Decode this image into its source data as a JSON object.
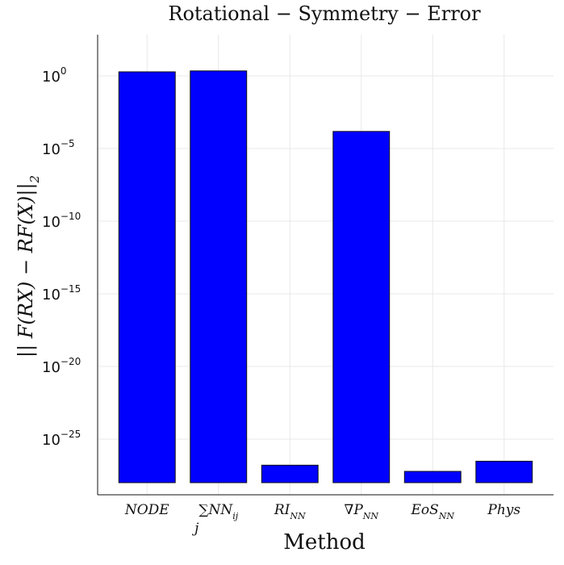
{
  "chart_data": {
    "type": "bar",
    "title": "Rotational − Symmetry − Error",
    "xlabel": "Method",
    "ylabel": "|| F(RX) − RF(X)||",
    "ylabel_subscript": "2",
    "categories": [
      {
        "base": "NODE",
        "sub": "",
        "prefix": ""
      },
      {
        "base": "NN",
        "sub": "ij",
        "prefix": "∑",
        "under": "j"
      },
      {
        "base": "RI",
        "sub": "NN",
        "prefix": ""
      },
      {
        "base": "∇P",
        "sub": "NN",
        "prefix": ""
      },
      {
        "base": "EoS",
        "sub": "NN",
        "prefix": ""
      },
      {
        "base": "Phys",
        "sub": "",
        "prefix": ""
      }
    ],
    "values": [
      1.9,
      2.2,
      1.6e-27,
      0.00015,
      6e-28,
      3e-27
    ],
    "bar_color": "#0000ff",
    "yscale": "log",
    "ylim": [
      1e-28,
      100.0
    ],
    "yticks": [
      {
        "base": "10",
        "exp": "0",
        "value": 1
      },
      {
        "base": "10",
        "exp": "−5",
        "value": 1e-05
      },
      {
        "base": "10",
        "exp": "−10",
        "value": 1e-10
      },
      {
        "base": "10",
        "exp": "−15",
        "value": 1e-15
      },
      {
        "base": "10",
        "exp": "−20",
        "value": 1e-20
      },
      {
        "base": "10",
        "exp": "−25",
        "value": 1e-25
      }
    ],
    "grid": true,
    "legend": "none"
  }
}
